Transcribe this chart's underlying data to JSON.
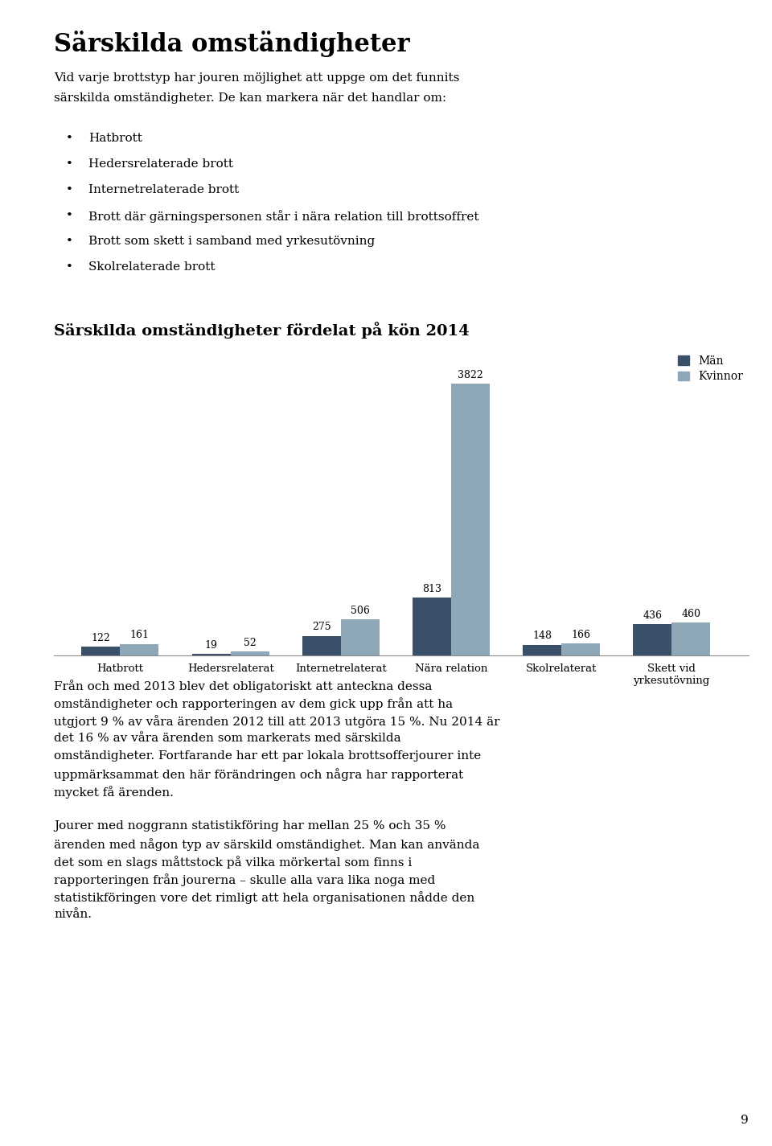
{
  "page_title": "Särskilda omständigheter",
  "intro_line1": "Vid varje brottstyp har jouren möjlighet att uppge om det funnits",
  "intro_line2": "särskilda omständigheter. De kan markera när det handlar om:",
  "bullet_points": [
    "Hatbrott",
    "Hedersrelaterade brott",
    "Internetrelaterade brott",
    "Brott där gärningspersonen står i nära relation till brottsoffret",
    "Brott som skett i samband med yrkesutövning",
    "Skolrelaterade brott"
  ],
  "chart_title": "Särskilda omständigheter fördelat på kön 2014",
  "categories": [
    "Hatbrott",
    "Hedersrelaterat",
    "Internetrelaterat",
    "Nära relation",
    "Skolrelaterat",
    "Skett vid\nyrkesutövning"
  ],
  "man_values": [
    122,
    19,
    275,
    813,
    148,
    436
  ],
  "woman_values": [
    161,
    52,
    506,
    3822,
    166,
    460
  ],
  "man_color": "#3a5068",
  "woman_color": "#8fa8b8",
  "man_label": "Män",
  "woman_label": "Kvinnor",
  "body_text_1_lines": [
    "Från och med 2013 blev det obligatoriskt att anteckna dessa",
    "omständigheter och rapporteringen av dem gick upp från att ha",
    "utgjort 9 % av våra ärenden 2012 till att 2013 utgöra 15 %. Nu 2014 är",
    "det 16 % av våra ärenden som markerats med särskilda",
    "omständigheter. Fortfarande har ett par lokala brottsofferjourer inte",
    "uppmärksammat den här förändringen och några har rapporterat",
    "mycket få ärenden."
  ],
  "body_text_2_lines": [
    "Jourer med noggrann statistikföring har mellan 25 % och 35 %",
    "ärenden med någon typ av särskild omständighet. Man kan använda",
    "det som en slags måttstock på vilka mörkertal som finns i",
    "rapporteringen från jourerna – skulle alla vara lika noga med",
    "statistikföringen vore det rimligt att hela organisationen nådde den",
    "nivån."
  ],
  "page_number": "9",
  "background_color": "#ffffff",
  "text_color": "#000000",
  "bar_width": 0.35,
  "ylim": [
    0,
    4300
  ]
}
